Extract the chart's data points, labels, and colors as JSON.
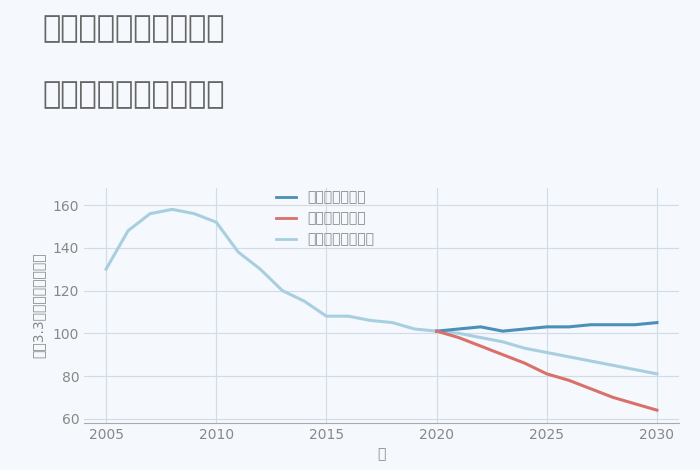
{
  "title_line1": "奈良県生駒市門前町の",
  "title_line2": "中古戸建ての価格推移",
  "xlabel": "年",
  "ylabel": "平（3.3㎡）単価（万円）",
  "xlim": [
    2004,
    2031
  ],
  "ylim": [
    58,
    168
  ],
  "yticks": [
    60,
    80,
    100,
    120,
    140,
    160
  ],
  "xticks": [
    2005,
    2010,
    2015,
    2020,
    2025,
    2030
  ],
  "background_color": "#f5f8fc",
  "grid_color": "#d0dce8",
  "good_label": "グッドシナリオ",
  "bad_label": "バッドシナリオ",
  "normal_label": "ノーマルシナリオ",
  "good_color": "#4a90b8",
  "bad_color": "#d9706a",
  "normal_color": "#a8cfe0",
  "historical_years": [
    2005,
    2006,
    2007,
    2008,
    2009,
    2010,
    2011,
    2012,
    2013,
    2014,
    2015,
    2016,
    2017,
    2018,
    2019,
    2020
  ],
  "historical_values": [
    130,
    148,
    156,
    158,
    156,
    152,
    138,
    130,
    120,
    115,
    108,
    108,
    106,
    105,
    102,
    101
  ],
  "good_years": [
    2020,
    2021,
    2022,
    2023,
    2024,
    2025,
    2026,
    2027,
    2028,
    2029,
    2030
  ],
  "good_values": [
    101,
    102,
    103,
    101,
    102,
    103,
    103,
    104,
    104,
    104,
    105
  ],
  "bad_years": [
    2020,
    2021,
    2022,
    2023,
    2024,
    2025,
    2026,
    2027,
    2028,
    2029,
    2030
  ],
  "bad_values": [
    101,
    98,
    94,
    90,
    86,
    81,
    78,
    74,
    70,
    67,
    64
  ],
  "normal_years": [
    2020,
    2021,
    2022,
    2023,
    2024,
    2025,
    2026,
    2027,
    2028,
    2029,
    2030
  ],
  "normal_values": [
    101,
    100,
    98,
    96,
    93,
    91,
    89,
    87,
    85,
    83,
    81
  ],
  "title_fontsize": 22,
  "label_fontsize": 10,
  "tick_fontsize": 10,
  "legend_fontsize": 10,
  "title_color": "#666666",
  "axis_color": "#aaaaaa",
  "tick_color": "#888888"
}
